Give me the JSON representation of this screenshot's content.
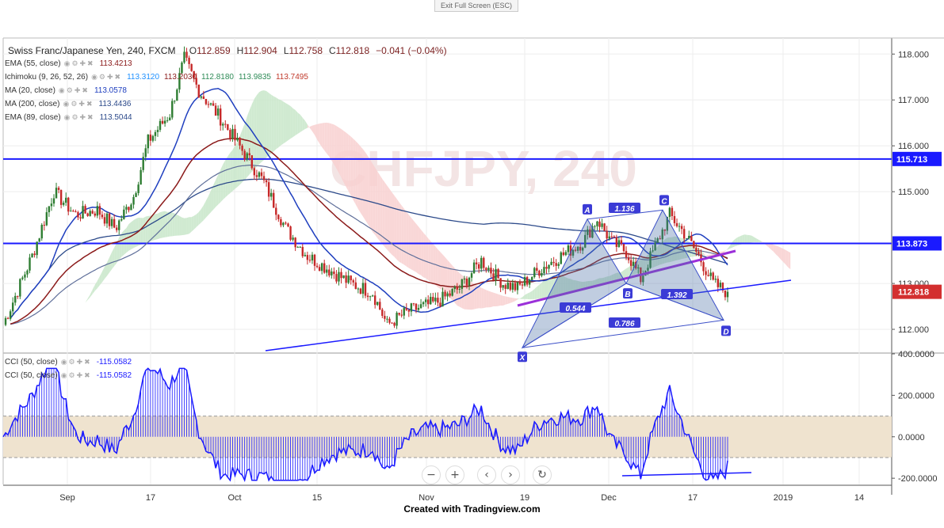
{
  "top_button": "Exit Full Screen (ESC)",
  "header": {
    "symbol": "Swiss Franc/Japanese Yen, 240, FXCM",
    "ohlc": [
      {
        "label": "O",
        "value": "112.859"
      },
      {
        "label": "H",
        "value": "112.904"
      },
      {
        "label": "L",
        "value": "112.758"
      },
      {
        "label": "C",
        "value": "112.818"
      },
      {
        "label": "",
        "value": "−0.041 (−0.04%)"
      }
    ]
  },
  "indicators": [
    {
      "name": "EMA (55, close)",
      "values": [
        {
          "v": "113.4213",
          "color": "#8b1a1a"
        }
      ]
    },
    {
      "name": "Ichimoku (9, 26, 52, 26)",
      "values": [
        {
          "v": "113.3120",
          "color": "#1e90ff"
        },
        {
          "v": "113.2030",
          "color": "#8b1a1a"
        },
        {
          "v": "112.8180",
          "color": "#2e8b57"
        },
        {
          "v": "113.9835",
          "color": "#2e8b57"
        },
        {
          "v": "113.7495",
          "color": "#c0392b"
        }
      ]
    },
    {
      "name": "MA (20, close)",
      "values": [
        {
          "v": "113.0578",
          "color": "#1f3fbf"
        }
      ]
    },
    {
      "name": "MA (200, close)",
      "values": [
        {
          "v": "113.4436",
          "color": "#2c4a8a"
        }
      ]
    },
    {
      "name": "EMA (89, close)",
      "values": [
        {
          "v": "113.5044",
          "color": "#2c4a8a"
        }
      ]
    }
  ],
  "cci_legend": [
    {
      "name": "CCI (50, close)",
      "value": "-115.0582"
    },
    {
      "name": "CCI (50, close)",
      "value": "-115.0582"
    }
  ],
  "watermark": "CHFJPY, 240",
  "zoom_controls": [
    {
      "name": "zoom-out-button",
      "glyph": "−"
    },
    {
      "name": "zoom-in-button",
      "glyph": "+"
    },
    {
      "name": "scroll-left-button",
      "glyph": "‹"
    },
    {
      "name": "scroll-right-button",
      "glyph": "›"
    },
    {
      "name": "reset-chart-button",
      "glyph": "↻"
    }
  ],
  "footer": "Created with Tradingview.com",
  "colors": {
    "up": "#2e7d32",
    "down": "#c62828",
    "hline": "#1a1aff",
    "cloud_bull": "#c8e6c9",
    "cloud_bear": "#f8d0d0",
    "purple": "#9b30d9",
    "cci": "#1a1aff",
    "band": "#efe3cf"
  },
  "chart_data": [
    {
      "type": "candlestick",
      "title": "Swiss Franc/Japanese Yen, 240, FXCM",
      "x_tick_labels": [
        "Sep",
        "17",
        "Oct",
        "15",
        "Nov",
        "19",
        "Dec",
        "17",
        "2019",
        "14"
      ],
      "y_tick_labels": [
        "118.000",
        "117.000",
        "116.000",
        "115.000",
        "113.000",
        "112.000"
      ],
      "ylim": [
        111.5,
        118.35
      ],
      "horizontal_levels": [
        {
          "value": 115.713,
          "label": "115.713"
        },
        {
          "value": 113.873,
          "label": "113.873"
        }
      ],
      "last_price": {
        "value": 112.818,
        "label": "112.818"
      },
      "price_path": [
        {
          "t": 0,
          "p": 112.1
        },
        {
          "t": 0.04,
          "p": 113.6
        },
        {
          "t": 0.07,
          "p": 115.0
        },
        {
          "t": 0.1,
          "p": 114.5
        },
        {
          "t": 0.13,
          "p": 114.6
        },
        {
          "t": 0.155,
          "p": 114.2
        },
        {
          "t": 0.18,
          "p": 114.9
        },
        {
          "t": 0.2,
          "p": 116.1
        },
        {
          "t": 0.23,
          "p": 116.7
        },
        {
          "t": 0.25,
          "p": 117.9
        },
        {
          "t": 0.27,
          "p": 117.2
        },
        {
          "t": 0.3,
          "p": 116.6
        },
        {
          "t": 0.33,
          "p": 115.9
        },
        {
          "t": 0.36,
          "p": 115.2
        },
        {
          "t": 0.39,
          "p": 114.2
        },
        {
          "t": 0.42,
          "p": 113.6
        },
        {
          "t": 0.45,
          "p": 113.3
        },
        {
          "t": 0.48,
          "p": 113.0
        },
        {
          "t": 0.51,
          "p": 112.8
        },
        {
          "t": 0.53,
          "p": 112.1
        },
        {
          "t": 0.56,
          "p": 112.4
        },
        {
          "t": 0.6,
          "p": 112.6
        },
        {
          "t": 0.63,
          "p": 112.9
        },
        {
          "t": 0.66,
          "p": 113.5
        },
        {
          "t": 0.69,
          "p": 113.0
        },
        {
          "t": 0.71,
          "p": 112.9
        },
        {
          "t": 0.74,
          "p": 113.3
        },
        {
          "t": 0.77,
          "p": 113.6
        },
        {
          "t": 0.8,
          "p": 113.9
        },
        {
          "t": 0.82,
          "p": 114.4
        },
        {
          "t": 0.84,
          "p": 113.9
        },
        {
          "t": 0.86,
          "p": 113.7
        },
        {
          "t": 0.88,
          "p": 113.1
        },
        {
          "t": 0.9,
          "p": 113.8
        },
        {
          "t": 0.92,
          "p": 114.5
        },
        {
          "t": 0.94,
          "p": 114.1
        },
        {
          "t": 0.96,
          "p": 113.6
        },
        {
          "t": 0.98,
          "p": 113.0
        },
        {
          "t": 1.0,
          "p": 112.8
        }
      ],
      "pattern": {
        "points": [
          {
            "label": "X",
            "price": 111.6
          },
          {
            "label": "A",
            "price": 114.4
          },
          {
            "label": "B",
            "price": 113.0
          },
          {
            "label": "C",
            "price": 114.6
          },
          {
            "label": "D",
            "price": 112.2
          }
        ],
        "ratios": [
          "1.136",
          "0.544",
          "1.392",
          "0.786"
        ]
      }
    },
    {
      "type": "line",
      "title": "CCI (50, close)",
      "y_tick_labels": [
        "400.0000",
        "200.0000",
        "0.0000",
        "-200.0000"
      ],
      "ylim": [
        -230,
        400
      ],
      "band": [
        -100,
        100
      ],
      "last_value": -115.0582
    }
  ]
}
